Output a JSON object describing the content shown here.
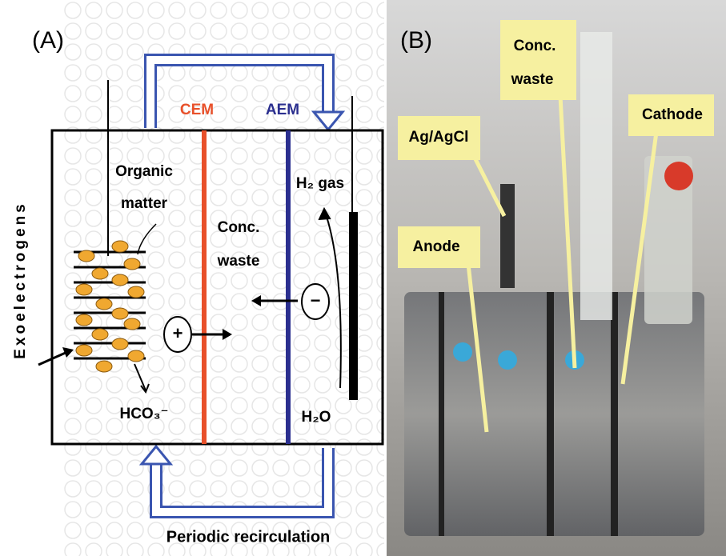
{
  "panel_a": {
    "label": "(A)",
    "membranes": [
      "CEM",
      "AEM"
    ],
    "organic_matter": [
      "Organic",
      "matter"
    ],
    "conc_waste": [
      "Conc.",
      "waste"
    ],
    "h2_gas": "H₂ gas",
    "h2o": "H₂O",
    "hco3": "HCO₃⁻",
    "exoelectrogens": "Exoelectrogens",
    "cation": "+",
    "anion": "−",
    "recirculation": "Periodic recirculation"
  },
  "panel_b": {
    "label": "(B)",
    "callouts": [
      [
        "Conc.",
        "waste"
      ],
      [
        "Ag/AgCl"
      ],
      [
        "Cathode"
      ],
      [
        "Anode"
      ]
    ]
  }
}
